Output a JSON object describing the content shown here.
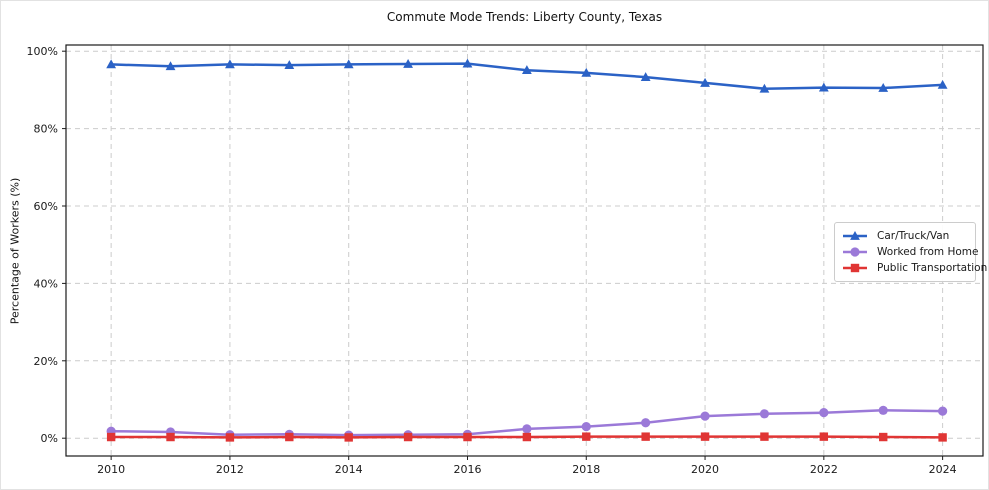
{
  "chart_data": {
    "type": "line",
    "title": "Commute Mode Trends: Liberty County, Texas",
    "xlabel": "",
    "ylabel": "Percentage of Workers (%)",
    "x": [
      2010,
      2011,
      2012,
      2013,
      2014,
      2015,
      2016,
      2017,
      2018,
      2019,
      2020,
      2021,
      2022,
      2023,
      2024
    ],
    "series": [
      {
        "name": "Car/Truck/Van",
        "color": "#2b62c6",
        "marker": "triangle",
        "values": [
          96.6,
          96.1,
          96.6,
          96.4,
          96.6,
          96.7,
          96.8,
          95.1,
          94.4,
          93.3,
          91.8,
          90.3,
          90.6,
          90.5,
          91.3
        ]
      },
      {
        "name": "Worked from Home",
        "color": "#9b79d8",
        "marker": "circle",
        "values": [
          1.8,
          1.6,
          0.9,
          1.0,
          0.8,
          0.9,
          1.0,
          2.4,
          3.0,
          4.0,
          5.7,
          6.3,
          6.6,
          7.2,
          7.0
        ]
      },
      {
        "name": "Public Transportation",
        "color": "#e03534",
        "marker": "square",
        "values": [
          0.3,
          0.3,
          0.2,
          0.3,
          0.2,
          0.3,
          0.3,
          0.3,
          0.4,
          0.4,
          0.4,
          0.4,
          0.4,
          0.3,
          0.2
        ]
      }
    ],
    "xticks": [
      2010,
      2012,
      2014,
      2016,
      2018,
      2020,
      2022,
      2024
    ],
    "xtick_labels": [
      "2010",
      "2012",
      "2014",
      "2016",
      "2018",
      "2020",
      "2022",
      "2024"
    ],
    "yticks": [
      0,
      20,
      40,
      60,
      80,
      100
    ],
    "ytick_labels": [
      "0%",
      "20%",
      "40%",
      "60%",
      "80%",
      "100%"
    ],
    "xlim": [
      2009.24,
      2024.68
    ],
    "ylim": [
      -4.6,
      101.6
    ],
    "grid": true,
    "grid_color": "#cccccc",
    "spine_color": "#1a1a1a",
    "legend_position": "center-right"
  }
}
